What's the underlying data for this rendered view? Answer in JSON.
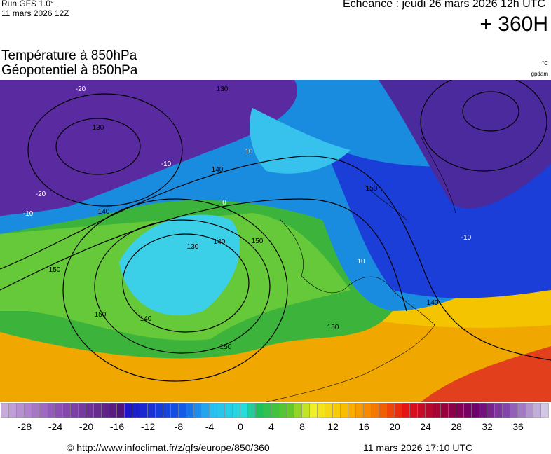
{
  "header": {
    "run": "Run GFS 1.0°",
    "run_date": "11 mars 2026 12Z",
    "echeance": "Echéance : jeudi 26 mars 2026 12h UTC",
    "lead": "+ 360H"
  },
  "titles": [
    "Température à 850hPa",
    "Géopotentiel à 850hPa"
  ],
  "units": [
    "°C",
    "gpdam"
  ],
  "contour_labels": [
    130,
    140,
    150,
    130,
    140,
    150,
    140,
    150,
    150,
    150,
    150,
    140,
    130,
    140,
    -20,
    -20,
    -10,
    -10,
    10,
    0,
    10,
    -10
  ],
  "colorbar_ticks": [
    -28,
    -24,
    -20,
    -16,
    -12,
    -8,
    -4,
    0,
    4,
    8,
    12,
    16,
    20,
    24,
    28,
    32,
    36
  ],
  "footer": {
    "url": "© http://www.infoclimat.fr/z/gfs/europe/850/360",
    "time": "11 mars 2026 17:10 UTC"
  }
}
